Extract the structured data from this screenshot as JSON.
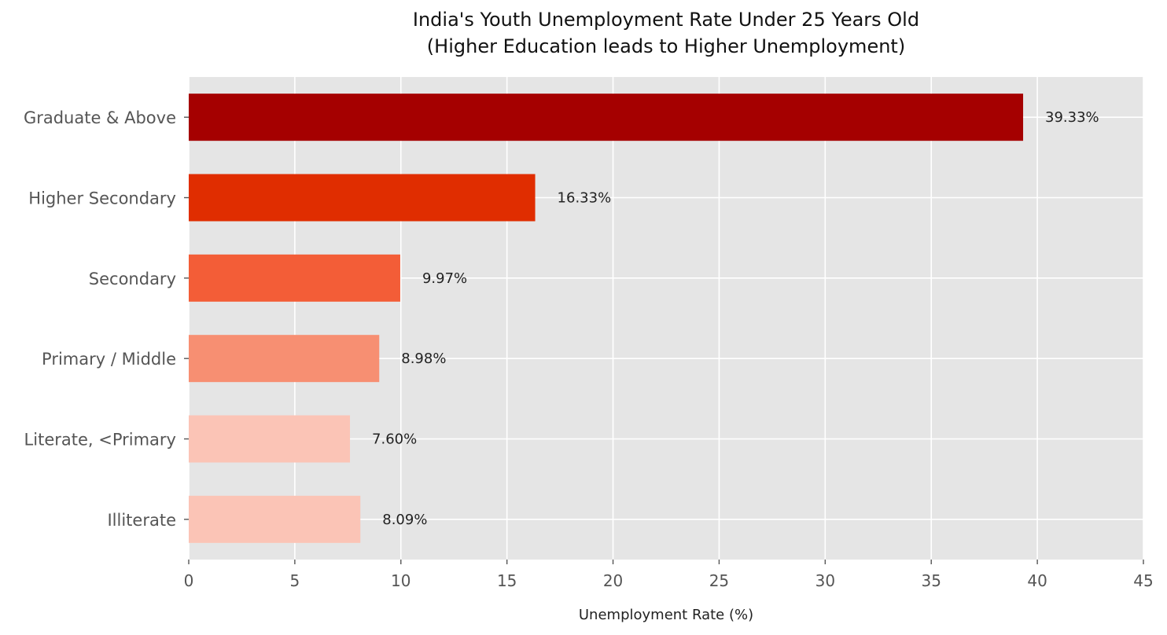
{
  "chart_data": {
    "type": "bar",
    "orientation": "horizontal",
    "title": "India's Youth Unemployment Rate Under 25 Years Old",
    "subtitle": "(Higher Education leads to Higher Unemployment)",
    "xlabel": "Unemployment Rate (%)",
    "ylabel": "",
    "xlim": [
      0,
      45
    ],
    "xticks": [
      "0",
      "5",
      "10",
      "15",
      "20",
      "25",
      "30",
      "35",
      "40",
      "45"
    ],
    "grid": true,
    "categories": [
      "Graduate & Above",
      "Higher Secondary",
      "Secondary",
      "Primary / Middle",
      "Literate, <Primary",
      "Illiterate"
    ],
    "values": [
      39.33,
      16.33,
      9.97,
      8.98,
      7.6,
      8.09
    ],
    "value_labels": [
      "39.33%",
      "16.33%",
      "9.97%",
      "8.98%",
      "7.60%",
      "8.09%"
    ],
    "colors": [
      "#a50000",
      "#e02d00",
      "#f35d37",
      "#f78f72",
      "#fbc4b6",
      "#fbc4b6"
    ],
    "background": "#e5e5e5",
    "grid_color": "#ffffff"
  }
}
